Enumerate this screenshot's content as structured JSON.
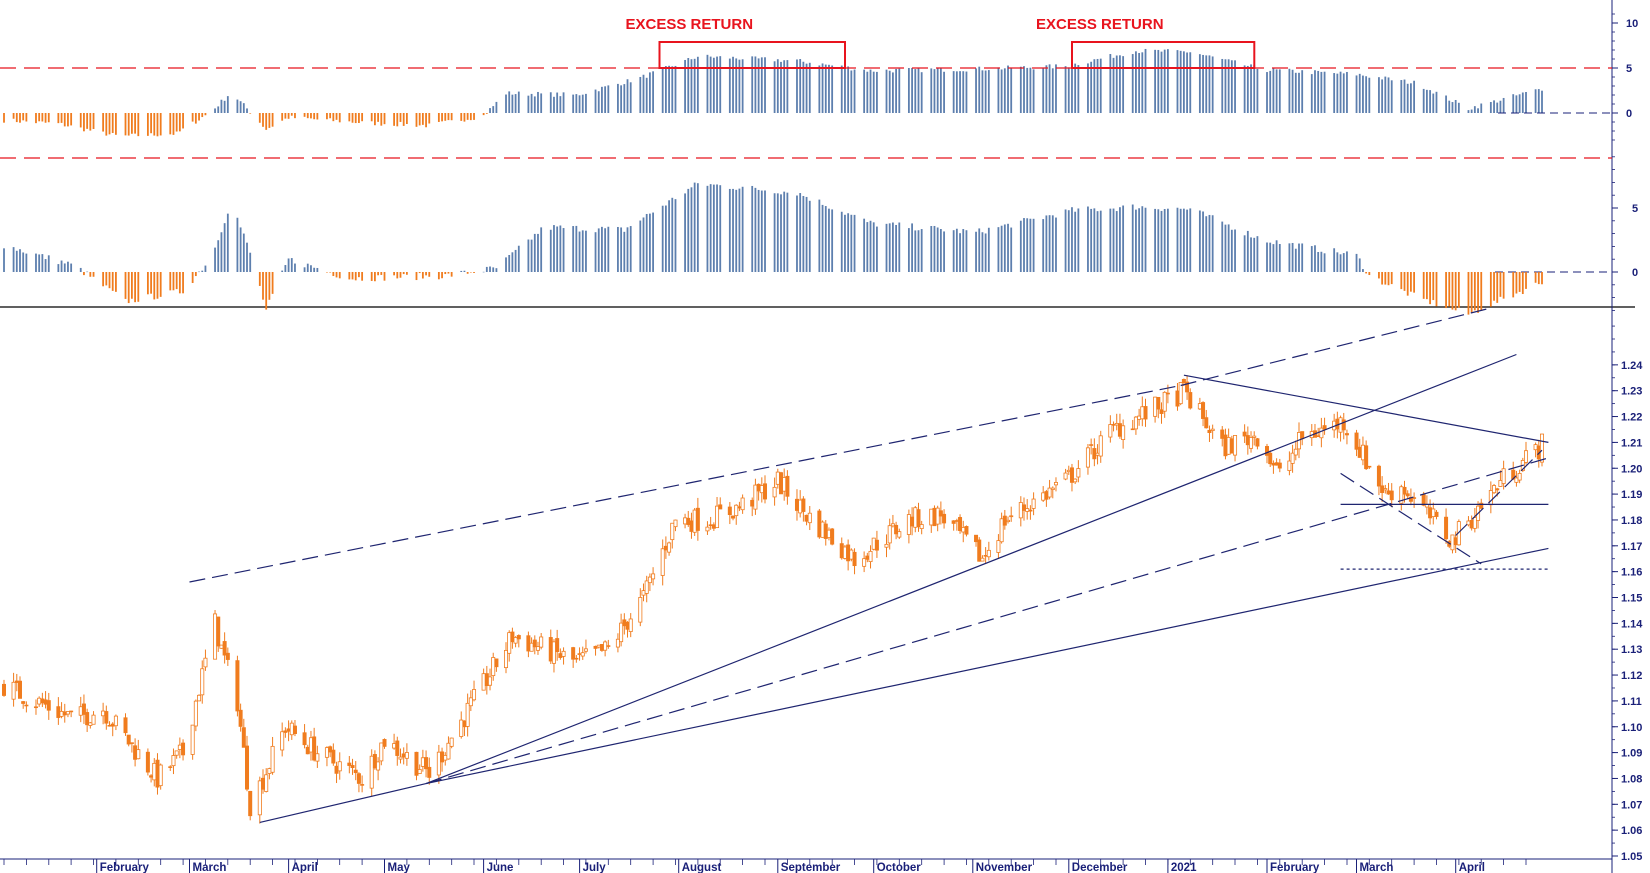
{
  "colors": {
    "candle": "#f07c1e",
    "positive_bar": "#5d7fae",
    "negative_bar": "#f07c1e",
    "axis": "#1a2078",
    "trendline": "#1f2570",
    "annotation": "#e8141e"
  },
  "chart_data": [
    {
      "type": "bar",
      "panel": "top-oscillator",
      "yticks": [
        "10",
        "5",
        "0"
      ],
      "ylim": [
        -5,
        12
      ],
      "reference_levels": [
        5,
        -5
      ],
      "annotations": [
        {
          "text": "EXCESS RETURN",
          "x_range": [
            "2020-07-26",
            "2020-09-22"
          ],
          "level": 5
        },
        {
          "text": "EXCESS RETURN",
          "x_range": [
            "2020-12-02",
            "2021-01-28"
          ],
          "level": 5
        }
      ],
      "series": [
        {
          "anchors": [
            [
              "2020-01-03",
              -0.8
            ],
            [
              "2020-01-20",
              -1.2
            ],
            [
              "2020-02-08",
              -2.6
            ],
            [
              "2020-02-26",
              -2.3
            ],
            [
              "2020-03-08",
              0.2
            ],
            [
              "2020-03-14",
              2.3
            ],
            [
              "2020-03-19",
              0.5
            ],
            [
              "2020-03-25",
              -1.8
            ],
            [
              "2020-04-01",
              -0.5
            ],
            [
              "2020-04-25",
              -1.1
            ],
            [
              "2020-05-15",
              -1.4
            ],
            [
              "2020-06-01",
              -0.3
            ],
            [
              "2020-06-08",
              2.2
            ],
            [
              "2020-06-30",
              2.0
            ],
            [
              "2020-07-20",
              3.9
            ],
            [
              "2020-08-07",
              6.3
            ],
            [
              "2020-09-07",
              5.8
            ],
            [
              "2020-09-30",
              4.7
            ],
            [
              "2020-11-03",
              4.9
            ],
            [
              "2020-11-30",
              5.2
            ],
            [
              "2020-12-22",
              6.9
            ],
            [
              "2021-01-08",
              6.8
            ],
            [
              "2021-01-31",
              4.8
            ],
            [
              "2021-03-01",
              4.3
            ],
            [
              "2021-03-20",
              3.3
            ],
            [
              "2021-04-05",
              0.5
            ],
            [
              "2021-04-28",
              2.7
            ]
          ]
        }
      ]
    },
    {
      "type": "bar",
      "panel": "middle-oscillator",
      "yticks": [
        "5",
        "0"
      ],
      "ylim": [
        -5,
        10
      ],
      "series": [
        {
          "anchors": [
            [
              "2020-01-03",
              2.1
            ],
            [
              "2020-01-25",
              0.5
            ],
            [
              "2020-02-10",
              -2.3
            ],
            [
              "2020-02-28",
              -1.5
            ],
            [
              "2020-03-08",
              1.2
            ],
            [
              "2020-03-14",
              5.5
            ],
            [
              "2020-03-20",
              1.5
            ],
            [
              "2020-03-25",
              -3.0
            ],
            [
              "2020-04-01",
              1.0
            ],
            [
              "2020-04-20",
              -0.5
            ],
            [
              "2020-05-20",
              -0.3
            ],
            [
              "2020-06-05",
              0.3
            ],
            [
              "2020-06-20",
              3.5
            ],
            [
              "2020-07-15",
              3.3
            ],
            [
              "2020-08-07",
              6.9
            ],
            [
              "2020-09-07",
              6.2
            ],
            [
              "2020-09-30",
              3.8
            ],
            [
              "2020-11-02",
              3.1
            ],
            [
              "2020-12-02",
              4.8
            ],
            [
              "2020-12-22",
              5.1
            ],
            [
              "2021-01-08",
              4.9
            ],
            [
              "2021-01-31",
              2.5
            ],
            [
              "2021-03-01",
              1.3
            ],
            [
              "2021-03-05",
              -0.3
            ],
            [
              "2021-03-20",
              -2.0
            ],
            [
              "2021-04-05",
              -3.3
            ],
            [
              "2021-04-28",
              -0.8
            ]
          ]
        }
      ]
    },
    {
      "type": "candlestick",
      "panel": "price",
      "yticks": [
        "1.24",
        "1.23",
        "1.22",
        "1.21",
        "1.20",
        "1.19",
        "1.18",
        "1.17",
        "1.16",
        "1.15",
        "1.14",
        "1.13",
        "1.12",
        "1.11",
        "1.10",
        "1.09",
        "1.08",
        "1.07",
        "1.06",
        "1.05"
      ],
      "ylim": [
        1.05,
        1.25
      ],
      "x_start": "2020-01-03",
      "x_end": "2021-04-28",
      "x_labels": [
        {
          "text": "February",
          "date": "2020-02-01"
        },
        {
          "text": "March",
          "date": "2020-03-01"
        },
        {
          "text": "April",
          "date": "2020-04-01"
        },
        {
          "text": "May",
          "date": "2020-05-01"
        },
        {
          "text": "June",
          "date": "2020-06-01"
        },
        {
          "text": "July",
          "date": "2020-07-01"
        },
        {
          "text": "August",
          "date": "2020-08-01"
        },
        {
          "text": "September",
          "date": "2020-09-01"
        },
        {
          "text": "October",
          "date": "2020-10-01"
        },
        {
          "text": "November",
          "date": "2020-11-01"
        },
        {
          "text": "December",
          "date": "2020-12-01"
        },
        {
          "text": "2021",
          "date": "2021-01-01"
        },
        {
          "text": "February",
          "date": "2021-02-01"
        },
        {
          "text": "March",
          "date": "2021-03-01"
        },
        {
          "text": "April",
          "date": "2021-04-01"
        }
      ],
      "close_path": [
        [
          "2020-01-03",
          1.116
        ],
        [
          "2020-01-13",
          1.11
        ],
        [
          "2020-01-25",
          1.103
        ],
        [
          "2020-02-03",
          1.107
        ],
        [
          "2020-02-20",
          1.08
        ],
        [
          "2020-02-28",
          1.09
        ],
        [
          "2020-03-09",
          1.14
        ],
        [
          "2020-03-11",
          1.13
        ],
        [
          "2020-03-16",
          1.11
        ],
        [
          "2020-03-20",
          1.07
        ],
        [
          "2020-03-24",
          1.08
        ],
        [
          "2020-03-31",
          1.1
        ],
        [
          "2020-04-10",
          1.09
        ],
        [
          "2020-04-24",
          1.08
        ],
        [
          "2020-05-01",
          1.095
        ],
        [
          "2020-05-15",
          1.082
        ],
        [
          "2020-05-29",
          1.11
        ],
        [
          "2020-06-10",
          1.135
        ],
        [
          "2020-06-30",
          1.125
        ],
        [
          "2020-07-10",
          1.13
        ],
        [
          "2020-07-21",
          1.15
        ],
        [
          "2020-07-31",
          1.18
        ],
        [
          "2020-08-10",
          1.18
        ],
        [
          "2020-08-20",
          1.185
        ],
        [
          "2020-09-01",
          1.195
        ],
        [
          "2020-09-10",
          1.182
        ],
        [
          "2020-09-25",
          1.165
        ],
        [
          "2020-10-12",
          1.18
        ],
        [
          "2020-10-22",
          1.182
        ],
        [
          "2020-11-04",
          1.165
        ],
        [
          "2020-11-11",
          1.18
        ],
        [
          "2020-11-30",
          1.195
        ],
        [
          "2020-12-15",
          1.215
        ],
        [
          "2020-12-31",
          1.225
        ],
        [
          "2021-01-06",
          1.23
        ],
        [
          "2021-01-18",
          1.208
        ],
        [
          "2021-01-29",
          1.213
        ],
        [
          "2021-02-05",
          1.197
        ],
        [
          "2021-02-12",
          1.212
        ],
        [
          "2021-02-25",
          1.218
        ],
        [
          "2021-03-10",
          1.19
        ],
        [
          "2021-03-15",
          1.193
        ],
        [
          "2021-03-31",
          1.172
        ],
        [
          "2021-04-15",
          1.195
        ],
        [
          "2021-04-28",
          1.209
        ]
      ],
      "trendlines": [
        {
          "style": "solid",
          "from": [
            "2020-03-23",
            1.063
          ],
          "to": [
            "2020-05-14",
            1.078
          ]
        },
        {
          "style": "dashed",
          "from": [
            "2020-03-01",
            1.156
          ],
          "to": [
            "2021-01-05",
            1.232
          ]
        },
        {
          "style": "dashed",
          "from": [
            "2021-01-05",
            1.232
          ],
          "to": [
            "2021-04-12",
            1.262
          ]
        },
        {
          "style": "solid",
          "from": [
            "2020-05-14",
            1.078
          ],
          "to": [
            "2021-04-20",
            1.244
          ]
        },
        {
          "style": "solid",
          "from": [
            "2020-05-14",
            1.078
          ],
          "to": [
            "2021-04-30",
            1.169
          ]
        },
        {
          "style": "dashed",
          "from": [
            "2020-05-14",
            1.078
          ],
          "to": [
            "2021-04-30",
            1.204
          ]
        },
        {
          "style": "solid",
          "from": [
            "2021-01-06",
            1.236
          ],
          "to": [
            "2021-04-30",
            1.21
          ]
        },
        {
          "style": "dashed",
          "from": [
            "2021-02-24",
            1.198
          ],
          "to": [
            "2021-04-09",
            1.163
          ]
        },
        {
          "style": "dashed",
          "from": [
            "2021-04-01",
            1.174
          ],
          "to": [
            "2021-04-28",
            1.207
          ]
        },
        {
          "style": "solid",
          "from": [
            "2021-02-24",
            1.186
          ],
          "to": [
            "2021-04-30",
            1.186
          ]
        },
        {
          "style": "dotted",
          "from": [
            "2021-02-24",
            1.161
          ],
          "to": [
            "2021-04-30",
            1.161
          ]
        }
      ]
    }
  ]
}
